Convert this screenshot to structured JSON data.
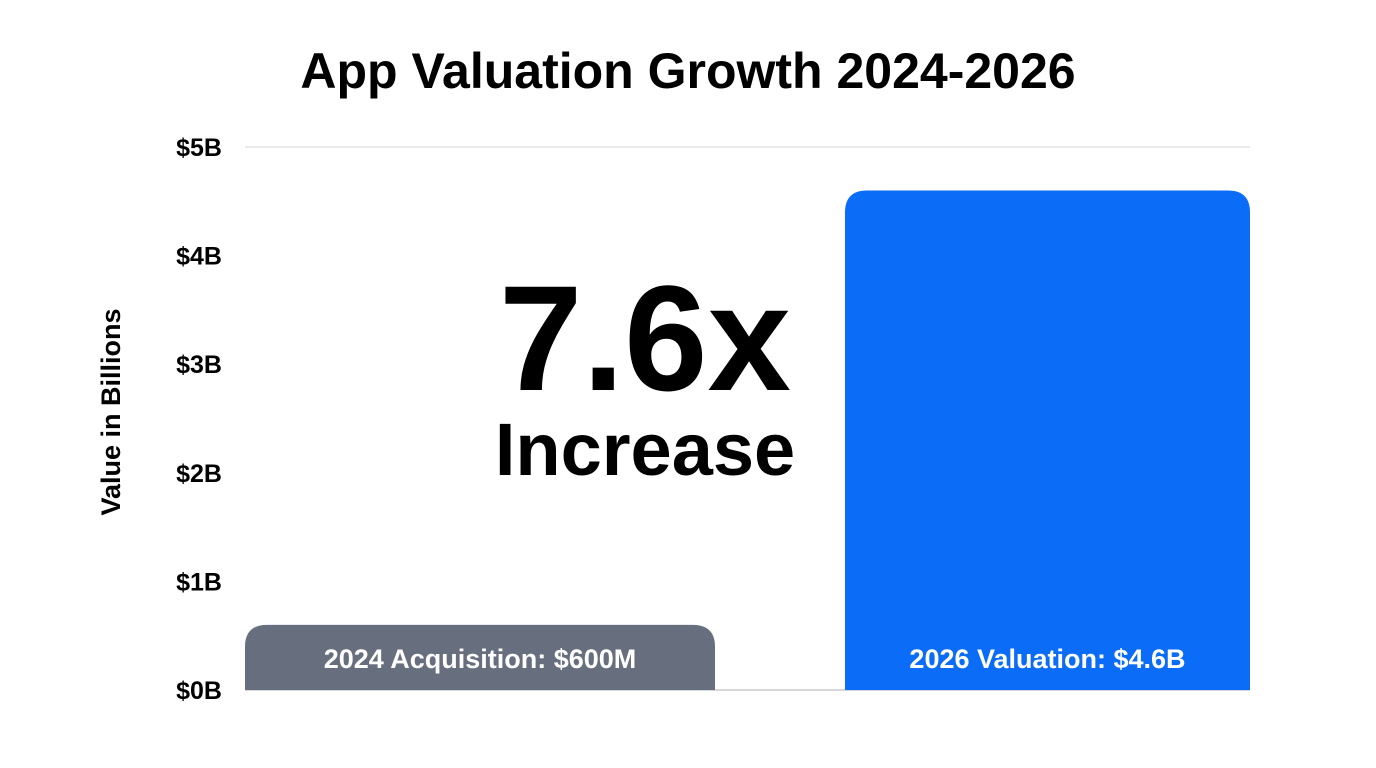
{
  "chart_data": {
    "type": "bar",
    "title": "App Valuation Growth 2024-2026",
    "ylabel": "Value in Billions",
    "xlabel": "",
    "ylim": [
      0,
      5
    ],
    "yticks": [
      0,
      1,
      2,
      3,
      4,
      5
    ],
    "ytick_labels": [
      "$0B",
      "$1B",
      "$2B",
      "$3B",
      "$4B",
      "$5B"
    ],
    "grid": "top gridline only",
    "categories": [
      "2024 Acquisition: $600M",
      "2026 Valuation: $4.6B"
    ],
    "values": [
      0.6,
      4.6
    ],
    "colors": [
      "#676e7e",
      "#0a6cf7"
    ],
    "annotation": {
      "value": "7.6x",
      "text": "Increase"
    }
  }
}
